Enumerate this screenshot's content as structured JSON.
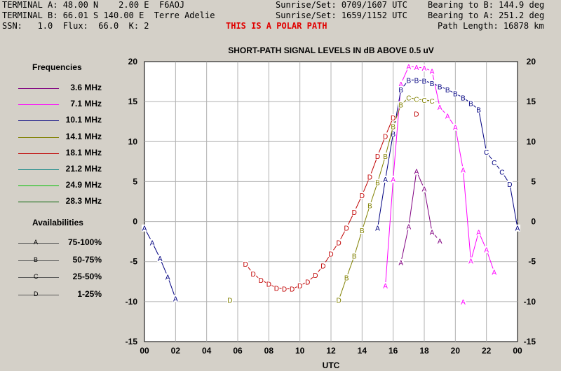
{
  "header": {
    "line1_left": "TERMINAL A: 48.00 N    2.00 E  F6AOJ",
    "line1_mid": "Sunrise/Set: 0709/1607 UTC",
    "line1_right": "Bearing to B: 144.9 deg",
    "line2_left": "TERMINAL B: 66.01 S 140.00 E  Terre Adelie",
    "line2_mid": "Sunrise/Set: 1659/1152 UTC",
    "line2_right": "Bearing to A: 251.2 deg",
    "line3_left": "SSN:   1.0  Flux:  66.0  K: 2",
    "line3_alert": "THIS IS A POLAR PATH",
    "line3_right": "Path Length: 16878 km"
  },
  "legend": {
    "freq_title": "Frequencies",
    "frequencies": [
      {
        "label": "3.6 MHz",
        "color": "#800080"
      },
      {
        "label": "7.1 MHz",
        "color": "#ff00ff"
      },
      {
        "label": "10.1 MHz",
        "color": "#000080"
      },
      {
        "label": "14.1 MHz",
        "color": "#808000"
      },
      {
        "label": "18.1 MHz",
        "color": "#c00000"
      },
      {
        "label": "21.2 MHz",
        "color": "#008080"
      },
      {
        "label": "24.9 MHz",
        "color": "#00c000"
      },
      {
        "label": "28.3 MHz",
        "color": "#006000"
      }
    ],
    "avail_title": "Availabilities",
    "availabilities": [
      {
        "marker": "A",
        "label": "75-100%"
      },
      {
        "marker": "B",
        "label": "50-75%"
      },
      {
        "marker": "C",
        "label": "25-50%"
      },
      {
        "marker": "D",
        "label": "1-25%"
      }
    ]
  },
  "chart_data": {
    "type": "line",
    "title": "SHORT-PATH SIGNAL LEVELS IN dB ABOVE 0.5 uV",
    "xlabel": "UTC",
    "ylabel": "",
    "xlim": [
      0,
      24
    ],
    "ylim": [
      -15,
      20
    ],
    "x_ticks": [
      "00",
      "02",
      "04",
      "06",
      "08",
      "10",
      "12",
      "14",
      "16",
      "18",
      "20",
      "22",
      "00"
    ],
    "y_ticks": [
      "-15",
      "-10",
      "-5",
      "0",
      "5",
      "10",
      "15",
      "20"
    ],
    "grid": true,
    "series": [
      {
        "name": "3.6 MHz",
        "color": "#800080",
        "segments": [
          [
            {
              "x": 19.0,
              "y": -2.4,
              "m": "A"
            },
            {
              "x": 18.5,
              "y": -1.3,
              "m": "A"
            },
            {
              "x": 18.0,
              "y": 4.1,
              "m": "A"
            },
            {
              "x": 17.5,
              "y": 6.3,
              "m": "A"
            },
            {
              "x": 17.0,
              "y": -0.6,
              "m": "A"
            },
            {
              "x": 16.5,
              "y": -5.1,
              "m": "A"
            }
          ]
        ]
      },
      {
        "name": "7.1 MHz",
        "color": "#ff00ff",
        "segments": [
          [
            {
              "x": 15.5,
              "y": -8.0,
              "m": "A"
            },
            {
              "x": 16.0,
              "y": 5.3,
              "m": "A"
            },
            {
              "x": 16.5,
              "y": 17.2,
              "m": "A"
            },
            {
              "x": 17.0,
              "y": 19.4,
              "m": "A"
            },
            {
              "x": 17.5,
              "y": 19.3,
              "m": "A"
            },
            {
              "x": 18.0,
              "y": 19.2,
              "m": "A"
            },
            {
              "x": 18.5,
              "y": 18.8,
              "m": "A"
            },
            {
              "x": 19.0,
              "y": 14.3,
              "m": "A"
            },
            {
              "x": 19.5,
              "y": 13.2,
              "m": "A"
            },
            {
              "x": 20.0,
              "y": 11.8,
              "m": "A"
            },
            {
              "x": 20.5,
              "y": 6.5,
              "m": "A"
            },
            {
              "x": 21.0,
              "y": -4.9,
              "m": "A"
            },
            {
              "x": 21.5,
              "y": -1.3,
              "m": "A"
            },
            {
              "x": 22.0,
              "y": -3.5,
              "m": "A"
            },
            {
              "x": 22.5,
              "y": -6.3,
              "m": "A"
            }
          ],
          [
            {
              "x": 20.5,
              "y": -10.0,
              "m": "A"
            }
          ]
        ]
      },
      {
        "name": "10.1 MHz",
        "color": "#000080",
        "segments": [
          [
            {
              "x": 0.0,
              "y": -0.8,
              "m": "A"
            },
            {
              "x": 0.5,
              "y": -2.6,
              "m": "A"
            },
            {
              "x": 1.0,
              "y": -4.6,
              "m": "A"
            },
            {
              "x": 1.5,
              "y": -6.9,
              "m": "A"
            },
            {
              "x": 2.0,
              "y": -9.6,
              "m": "A"
            }
          ],
          [
            {
              "x": 15.0,
              "y": -0.8,
              "m": "A"
            },
            {
              "x": 15.5,
              "y": 5.3,
              "m": "A"
            },
            {
              "x": 16.0,
              "y": 11.0,
              "m": "B"
            },
            {
              "x": 16.5,
              "y": 16.5,
              "m": "B"
            },
            {
              "x": 17.0,
              "y": 17.7,
              "m": "B"
            },
            {
              "x": 17.5,
              "y": 17.7,
              "m": "B"
            },
            {
              "x": 18.0,
              "y": 17.6,
              "m": "B"
            },
            {
              "x": 18.5,
              "y": 17.3,
              "m": "B"
            },
            {
              "x": 19.0,
              "y": 16.9,
              "m": "B"
            },
            {
              "x": 19.5,
              "y": 16.5,
              "m": "B"
            },
            {
              "x": 20.0,
              "y": 16.0,
              "m": "B"
            },
            {
              "x": 20.5,
              "y": 15.5,
              "m": "B"
            },
            {
              "x": 21.0,
              "y": 14.8,
              "m": "B"
            },
            {
              "x": 21.5,
              "y": 14.0,
              "m": "B"
            },
            {
              "x": 22.0,
              "y": 8.7,
              "m": "C"
            },
            {
              "x": 22.5,
              "y": 7.4,
              "m": "C"
            },
            {
              "x": 23.0,
              "y": 6.2,
              "m": "C"
            },
            {
              "x": 23.5,
              "y": 4.7,
              "m": "D"
            },
            {
              "x": 24.0,
              "y": -0.8,
              "m": "A"
            }
          ]
        ]
      },
      {
        "name": "14.1 MHz",
        "color": "#808000",
        "segments": [
          [
            {
              "x": 5.5,
              "y": -9.8,
              "m": "D"
            }
          ],
          [
            {
              "x": 12.5,
              "y": -9.8,
              "m": "D"
            },
            {
              "x": 13.0,
              "y": -7.0,
              "m": "B"
            },
            {
              "x": 13.5,
              "y": -4.3,
              "m": "B"
            },
            {
              "x": 14.0,
              "y": -1.1,
              "m": "B"
            },
            {
              "x": 14.5,
              "y": 2.0,
              "m": "B"
            },
            {
              "x": 15.0,
              "y": 4.9,
              "m": "B"
            },
            {
              "x": 15.5,
              "y": 8.2,
              "m": "B"
            },
            {
              "x": 16.0,
              "y": 11.9,
              "m": "B"
            },
            {
              "x": 16.5,
              "y": 14.6,
              "m": "B"
            },
            {
              "x": 17.0,
              "y": 15.5,
              "m": "C"
            },
            {
              "x": 17.5,
              "y": 15.3,
              "m": "C"
            },
            {
              "x": 18.0,
              "y": 15.2,
              "m": "C"
            },
            {
              "x": 18.5,
              "y": 15.1,
              "m": "C"
            }
          ]
        ]
      },
      {
        "name": "18.1 MHz",
        "color": "#c00000",
        "segments": [
          [
            {
              "x": 6.5,
              "y": -5.3,
              "m": "D"
            },
            {
              "x": 7.0,
              "y": -6.5,
              "m": "D"
            },
            {
              "x": 7.5,
              "y": -7.3,
              "m": "D"
            },
            {
              "x": 8.0,
              "y": -7.8,
              "m": "D"
            },
            {
              "x": 8.5,
              "y": -8.3,
              "m": "D"
            },
            {
              "x": 9.0,
              "y": -8.4,
              "m": "D"
            },
            {
              "x": 9.5,
              "y": -8.4,
              "m": "D"
            },
            {
              "x": 10.0,
              "y": -8.0,
              "m": "D"
            },
            {
              "x": 10.5,
              "y": -7.5,
              "m": "D"
            },
            {
              "x": 11.0,
              "y": -6.7,
              "m": "D"
            },
            {
              "x": 11.5,
              "y": -5.5,
              "m": "D"
            },
            {
              "x": 12.0,
              "y": -4.0,
              "m": "D"
            },
            {
              "x": 12.5,
              "y": -2.6,
              "m": "D"
            },
            {
              "x": 13.0,
              "y": -0.8,
              "m": "D"
            },
            {
              "x": 13.5,
              "y": 1.2,
              "m": "D"
            },
            {
              "x": 14.0,
              "y": 3.3,
              "m": "D"
            },
            {
              "x": 14.5,
              "y": 5.6,
              "m": "D"
            },
            {
              "x": 15.0,
              "y": 8.2,
              "m": "D"
            },
            {
              "x": 15.5,
              "y": 10.7,
              "m": "D"
            },
            {
              "x": 16.0,
              "y": 13.0,
              "m": "D"
            }
          ],
          [
            {
              "x": 17.5,
              "y": 13.5,
              "m": "D"
            }
          ]
        ]
      },
      {
        "name": "21.2 MHz",
        "color": "#008080",
        "segments": []
      },
      {
        "name": "24.9 MHz",
        "color": "#00c000",
        "segments": []
      },
      {
        "name": "28.3 MHz",
        "color": "#006000",
        "segments": []
      }
    ]
  }
}
